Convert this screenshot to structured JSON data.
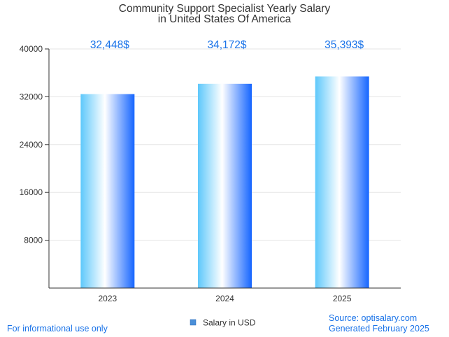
{
  "chart_data": {
    "type": "bar",
    "title": [
      "Community Support Specialist Yearly Salary",
      "in United States Of America"
    ],
    "categories": [
      "2023",
      "2024",
      "2025"
    ],
    "values": [
      32448,
      34172,
      35393
    ],
    "value_labels": [
      "32,448$",
      "34,172$",
      "35,393$"
    ],
    "yticks": [
      8000,
      16000,
      24000,
      32000,
      40000
    ],
    "ylim": [
      0,
      40000
    ],
    "grid": true,
    "legend": {
      "label": "Salary in USD",
      "position": "bottom-center"
    },
    "colors": {
      "bar_edge": "#4fc3f7",
      "bar_mid": "#ffffff",
      "bar_dark": "#1565ff",
      "value_text": "#1a73e8"
    }
  },
  "footer": {
    "left": "For informational use only",
    "right_source": "Source: optisalary.com",
    "right_generated": "Generated February 2025"
  }
}
